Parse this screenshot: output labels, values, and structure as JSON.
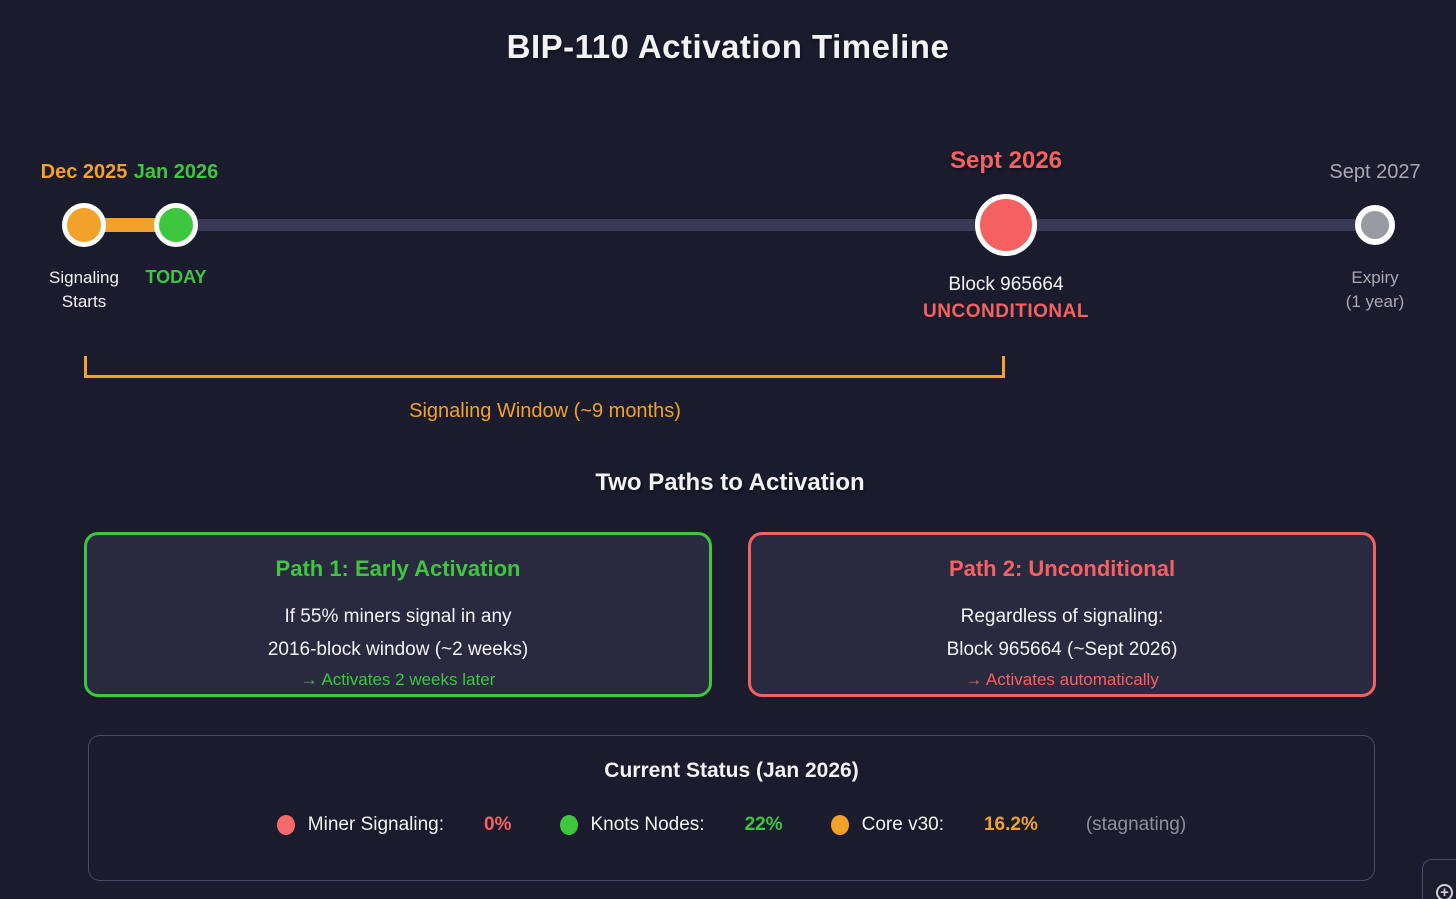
{
  "page": {
    "title": "BIP-110 Activation Timeline"
  },
  "colors": {
    "background": "#1b1b2e",
    "track": "#3a3a56",
    "accent_orange": "#f2a12b",
    "accent_green": "#3ec63e",
    "accent_red": "#f56161",
    "accent_gray": "#9a9aa2",
    "card_background": "#292940",
    "panel_border": "#4a4a68"
  },
  "timeline": {
    "nodes": [
      {
        "date": "Dec 2025",
        "sub1": "Signaling",
        "sub2": "Starts"
      },
      {
        "date": "Jan 2026",
        "sub1": "TODAY"
      },
      {
        "date": "Sept 2026",
        "sub1": "Block 965664",
        "sub2": "UNCONDITIONAL"
      },
      {
        "date": "Sept 2027",
        "sub1": "Expiry",
        "sub2": "(1 year)"
      }
    ],
    "bracket_label": "Signaling Window (~9 months)"
  },
  "paths_section": {
    "heading": "Two Paths to Activation",
    "cards": [
      {
        "title": "Path 1: Early Activation",
        "line1": "If 55% miners signal in any",
        "line2": "2016-block window (~2 weeks)",
        "line3": "→ Activates 2 weeks later"
      },
      {
        "title": "Path 2: Unconditional",
        "line1": "Regardless of signaling:",
        "line2": "Block 965664 (~Sept 2026)",
        "line3": "→ Activates automatically"
      }
    ]
  },
  "status": {
    "heading": "Current Status (Jan 2026)",
    "items": [
      {
        "label": "Miner Signaling:",
        "value": "0%"
      },
      {
        "label": "Knots Nodes:",
        "value": "22%"
      },
      {
        "label": "Core v30:",
        "value": "16.2%"
      }
    ],
    "note": "(stagnating)"
  },
  "icons": {
    "zoom_in_glyph": "+"
  }
}
